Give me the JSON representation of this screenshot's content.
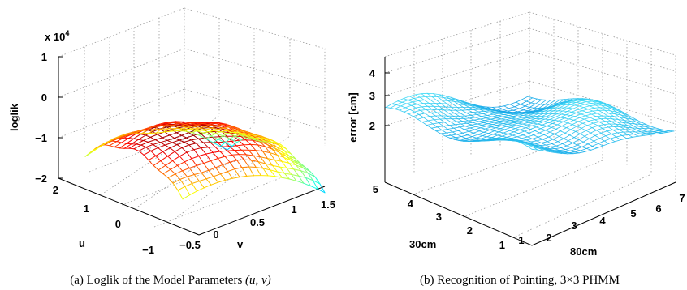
{
  "chart_data": [
    {
      "type": "surface",
      "caption": "(a)  Loglik of the Model Parameters (u, v)",
      "caption_parts": {
        "prefix": "(a)  Loglik of the Model Parameters ",
        "expr": "(u, v)"
      },
      "xlabel": "v",
      "ylabel": "u",
      "zlabel": "loglik",
      "z_multiplier": "x 10",
      "z_exponent": "4",
      "xticks": [
        "−0.5",
        "0",
        "0.5",
        "1",
        "1.5"
      ],
      "yticks": [
        "−1",
        "0",
        "1",
        "2"
      ],
      "zticks": [
        "1",
        "0",
        "−1",
        "−2"
      ],
      "xlim": [
        -0.5,
        1.5
      ],
      "ylim": [
        -1,
        2
      ],
      "zlim": [
        -2,
        1
      ],
      "colormap": "jet",
      "grid": true
    },
    {
      "type": "surface",
      "caption": "(b)  Recognition of Pointing, 3×3 PHMM",
      "xlabel": "80cm",
      "ylabel": "30cm",
      "zlabel": "error [cm]",
      "xticks": [
        "1",
        "2",
        "3",
        "4",
        "5",
        "6",
        "7"
      ],
      "yticks": [
        "1",
        "2",
        "3",
        "4",
        "5"
      ],
      "zticks": [
        "4",
        "3",
        "2"
      ],
      "xlim": [
        1,
        7
      ],
      "ylim": [
        1,
        5
      ],
      "color": "#33ccee",
      "grid": true
    }
  ]
}
